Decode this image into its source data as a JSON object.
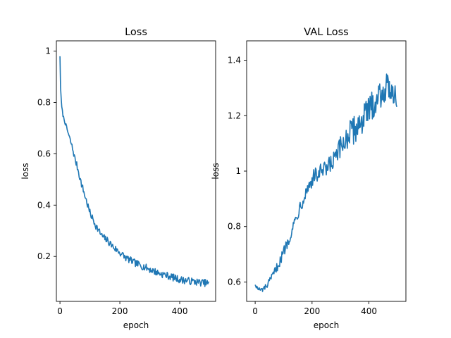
{
  "chart_data": [
    {
      "type": "line",
      "title": "Loss",
      "xlabel": "epoch",
      "ylabel": "loss",
      "xlim": [
        -12,
        520
      ],
      "ylim": [
        0.025,
        1.04
      ],
      "xticks": [
        0,
        200,
        400
      ],
      "yticks": [
        0.2,
        0.4,
        0.6,
        0.8,
        1.0
      ],
      "grid": false,
      "series": [
        {
          "x": [
            0,
            2,
            5,
            10,
            20,
            30,
            40,
            50,
            60,
            70,
            80,
            90,
            100,
            120,
            140,
            160,
            180,
            200,
            220,
            250,
            280,
            300,
            330,
            360,
            400,
            430,
            460,
            499
          ],
          "y": [
            0.98,
            0.86,
            0.79,
            0.75,
            0.71,
            0.67,
            0.63,
            0.58,
            0.54,
            0.49,
            0.45,
            0.41,
            0.37,
            0.32,
            0.28,
            0.26,
            0.235,
            0.215,
            0.195,
            0.175,
            0.16,
            0.15,
            0.135,
            0.125,
            0.11,
            0.105,
            0.1,
            0.095
          ]
        }
      ]
    },
    {
      "type": "line",
      "title": "VAL Loss",
      "xlabel": "epoch",
      "ylabel": "loss",
      "xlim": [
        -30,
        530
      ],
      "ylim": [
        0.53,
        1.47
      ],
      "xticks": [
        0,
        200,
        400
      ],
      "yticks": [
        0.6,
        0.8,
        1.0,
        1.2,
        1.4
      ],
      "grid": false,
      "series": [
        {
          "x": [
            0,
            10,
            20,
            30,
            40,
            50,
            60,
            70,
            80,
            90,
            100,
            120,
            140,
            160,
            180,
            200,
            220,
            250,
            280,
            300,
            320,
            350,
            380,
            400,
            420,
            440,
            460,
            480,
            499
          ],
          "y": [
            0.59,
            0.575,
            0.57,
            0.575,
            0.585,
            0.6,
            0.62,
            0.64,
            0.66,
            0.68,
            0.71,
            0.76,
            0.82,
            0.88,
            0.93,
            0.97,
            0.99,
            1.0,
            1.04,
            1.08,
            1.12,
            1.15,
            1.19,
            1.22,
            1.25,
            1.28,
            1.3,
            1.3,
            1.27
          ]
        }
      ]
    }
  ]
}
